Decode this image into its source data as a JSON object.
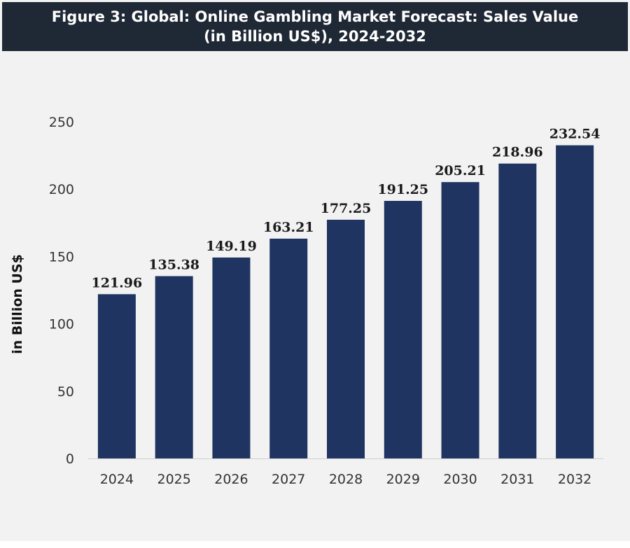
{
  "header": {
    "title_line1": "Figure 3: Global: Online Gambling Market Forecast: Sales Value",
    "title_line2": "(in Billion US$), 2024-2032"
  },
  "colors": {
    "title_background": "#1f2835",
    "bar": "#1f3461",
    "background": "#f2f2f2"
  },
  "chart_data": {
    "type": "bar",
    "title": "Figure 3: Global: Online Gambling Market Forecast: Sales Value (in Billion US$), 2024-2032",
    "xlabel": "",
    "ylabel": "in Billion US$",
    "categories": [
      "2024",
      "2025",
      "2026",
      "2027",
      "2028",
      "2029",
      "2030",
      "2031",
      "2032"
    ],
    "values": [
      121.96,
      135.38,
      149.19,
      163.21,
      177.25,
      191.25,
      205.21,
      218.96,
      232.54
    ],
    "value_labels": [
      "121.96",
      "135.38",
      "149.19",
      "163.21",
      "177.25",
      "191.25",
      "205.21",
      "218.96",
      "232.54"
    ],
    "ylim": [
      0,
      250
    ],
    "yticks": [
      "0",
      "50",
      "100",
      "150",
      "200",
      "250"
    ],
    "grid": false,
    "legend": "none"
  }
}
